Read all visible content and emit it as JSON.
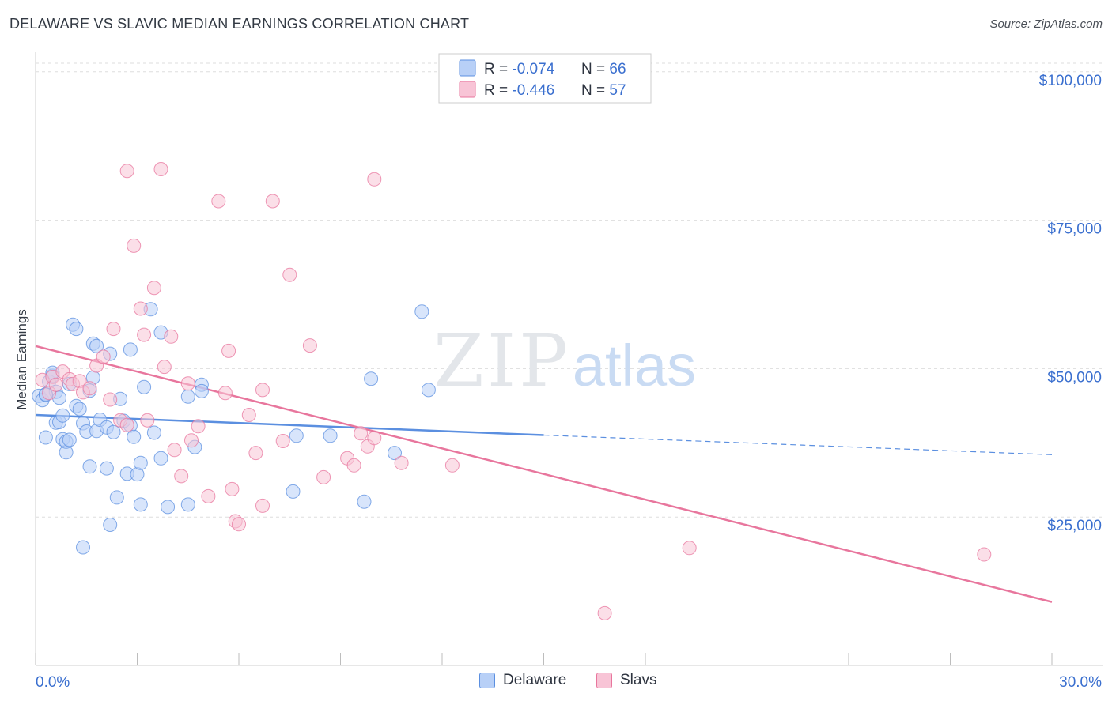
{
  "header": {
    "title": "DELAWARE VS SLAVIC MEDIAN EARNINGS CORRELATION CHART",
    "source": "Source: ZipAtlas.com"
  },
  "watermark": {
    "zip": "ZIP",
    "atlas": "atlas"
  },
  "colors": {
    "delaware": "#5b8fe0",
    "delaware_fill": "#b8d0f7",
    "slavs": "#e8769d",
    "slavs_fill": "#f8c4d6",
    "axis_value": "#3a6fcf",
    "grid": "#dddddd"
  },
  "stats_legend": [
    {
      "r_label": "R = ",
      "r_value": "-0.074",
      "n_label": "N = ",
      "n_value": "66"
    },
    {
      "r_label": "R = ",
      "r_value": "-0.446",
      "n_label": "N = ",
      "n_value": "57"
    }
  ],
  "bottom_legend": [
    "Delaware",
    "Slavs"
  ],
  "chart_data": {
    "type": "scatter",
    "title": "DELAWARE VS SLAVIC MEDIAN EARNINGS CORRELATION CHART",
    "ylabel": "Median Earnings",
    "xlabel": "",
    "xlim": [
      0,
      30
    ],
    "ylim": [
      0,
      102500
    ],
    "x_tick_labels": [
      "0.0%",
      "30.0%"
    ],
    "y_ticks": [
      25000,
      50000,
      75000,
      100000
    ],
    "y_tick_labels": [
      "$25,000",
      "$50,000",
      "$75,000",
      "$100,000"
    ],
    "grid": true,
    "legend_position": "top-center",
    "series": [
      {
        "name": "Delaware",
        "r": -0.074,
        "n": 66,
        "trend": {
          "x": [
            0,
            15,
            30
          ],
          "y": [
            42200,
            38800,
            35500
          ],
          "solid_until_x": 15
        },
        "points": [
          [
            0.1,
            45400
          ],
          [
            0.2,
            44700
          ],
          [
            0.3,
            45700
          ],
          [
            0.3,
            38400
          ],
          [
            0.4,
            47800
          ],
          [
            0.5,
            48800
          ],
          [
            0.5,
            49300
          ],
          [
            0.6,
            46100
          ],
          [
            0.6,
            40900
          ],
          [
            0.7,
            41000
          ],
          [
            0.7,
            45100
          ],
          [
            0.8,
            42100
          ],
          [
            0.8,
            38100
          ],
          [
            0.9,
            35900
          ],
          [
            0.9,
            37700
          ],
          [
            1.0,
            38000
          ],
          [
            1.0,
            47400
          ],
          [
            1.1,
            57400
          ],
          [
            1.2,
            56700
          ],
          [
            1.2,
            43700
          ],
          [
            1.3,
            43200
          ],
          [
            1.4,
            40800
          ],
          [
            1.4,
            19900
          ],
          [
            1.5,
            39400
          ],
          [
            1.6,
            46300
          ],
          [
            1.6,
            33500
          ],
          [
            1.7,
            48500
          ],
          [
            1.7,
            54200
          ],
          [
            1.8,
            53800
          ],
          [
            1.8,
            39500
          ],
          [
            1.9,
            41400
          ],
          [
            2.1,
            40100
          ],
          [
            2.1,
            33200
          ],
          [
            2.2,
            52500
          ],
          [
            2.2,
            23700
          ],
          [
            2.3,
            39300
          ],
          [
            2.4,
            28300
          ],
          [
            2.5,
            44900
          ],
          [
            2.6,
            41200
          ],
          [
            2.7,
            32300
          ],
          [
            2.8,
            53200
          ],
          [
            2.8,
            40400
          ],
          [
            2.9,
            38500
          ],
          [
            3.0,
            32200
          ],
          [
            3.1,
            34100
          ],
          [
            3.1,
            27100
          ],
          [
            3.2,
            46900
          ],
          [
            3.5,
            39200
          ],
          [
            3.4,
            60000
          ],
          [
            3.7,
            56100
          ],
          [
            3.7,
            34900
          ],
          [
            3.9,
            26700
          ],
          [
            4.5,
            45300
          ],
          [
            4.5,
            27100
          ],
          [
            4.7,
            36800
          ],
          [
            4.9,
            47300
          ],
          [
            4.9,
            46200
          ],
          [
            7.7,
            38700
          ],
          [
            7.6,
            29300
          ],
          [
            8.7,
            38700
          ],
          [
            9.7,
            27600
          ],
          [
            9.9,
            48300
          ],
          [
            10.6,
            35800
          ],
          [
            11.4,
            59600
          ],
          [
            11.6,
            46400
          ],
          [
            0.3,
            45600
          ]
        ]
      },
      {
        "name": "Slavs",
        "r": -0.446,
        "n": 57,
        "trend": {
          "x": [
            0,
            30
          ],
          "y": [
            53800,
            10700
          ]
        },
        "points": [
          [
            0.2,
            48100
          ],
          [
            0.4,
            45900
          ],
          [
            0.5,
            48600
          ],
          [
            0.6,
            47300
          ],
          [
            0.8,
            49500
          ],
          [
            1.0,
            48200
          ],
          [
            1.1,
            47400
          ],
          [
            1.3,
            47900
          ],
          [
            1.4,
            46000
          ],
          [
            1.6,
            46700
          ],
          [
            1.8,
            50500
          ],
          [
            2.0,
            52000
          ],
          [
            2.2,
            44800
          ],
          [
            2.3,
            56700
          ],
          [
            2.5,
            41300
          ],
          [
            2.7,
            40500
          ],
          [
            2.7,
            83300
          ],
          [
            2.9,
            70700
          ],
          [
            3.1,
            60100
          ],
          [
            3.2,
            55700
          ],
          [
            3.3,
            41300
          ],
          [
            3.5,
            63600
          ],
          [
            3.7,
            83600
          ],
          [
            3.8,
            50300
          ],
          [
            4.0,
            55400
          ],
          [
            4.1,
            36300
          ],
          [
            4.3,
            31900
          ],
          [
            4.5,
            47500
          ],
          [
            4.6,
            37900
          ],
          [
            4.8,
            40300
          ],
          [
            5.1,
            28500
          ],
          [
            5.4,
            78200
          ],
          [
            5.6,
            45900
          ],
          [
            5.7,
            53000
          ],
          [
            5.8,
            29700
          ],
          [
            5.9,
            24300
          ],
          [
            6.0,
            23800
          ],
          [
            6.3,
            42200
          ],
          [
            6.5,
            35800
          ],
          [
            6.7,
            46400
          ],
          [
            6.7,
            26900
          ],
          [
            7.0,
            78200
          ],
          [
            7.3,
            37800
          ],
          [
            7.5,
            65800
          ],
          [
            8.1,
            53900
          ],
          [
            8.5,
            31700
          ],
          [
            9.2,
            34900
          ],
          [
            9.4,
            33700
          ],
          [
            9.6,
            39100
          ],
          [
            9.8,
            36900
          ],
          [
            10.0,
            38300
          ],
          [
            10.0,
            81900
          ],
          [
            10.8,
            34100
          ],
          [
            12.3,
            33700
          ],
          [
            16.8,
            8800
          ],
          [
            19.3,
            19800
          ],
          [
            28.0,
            18700
          ]
        ]
      }
    ]
  }
}
